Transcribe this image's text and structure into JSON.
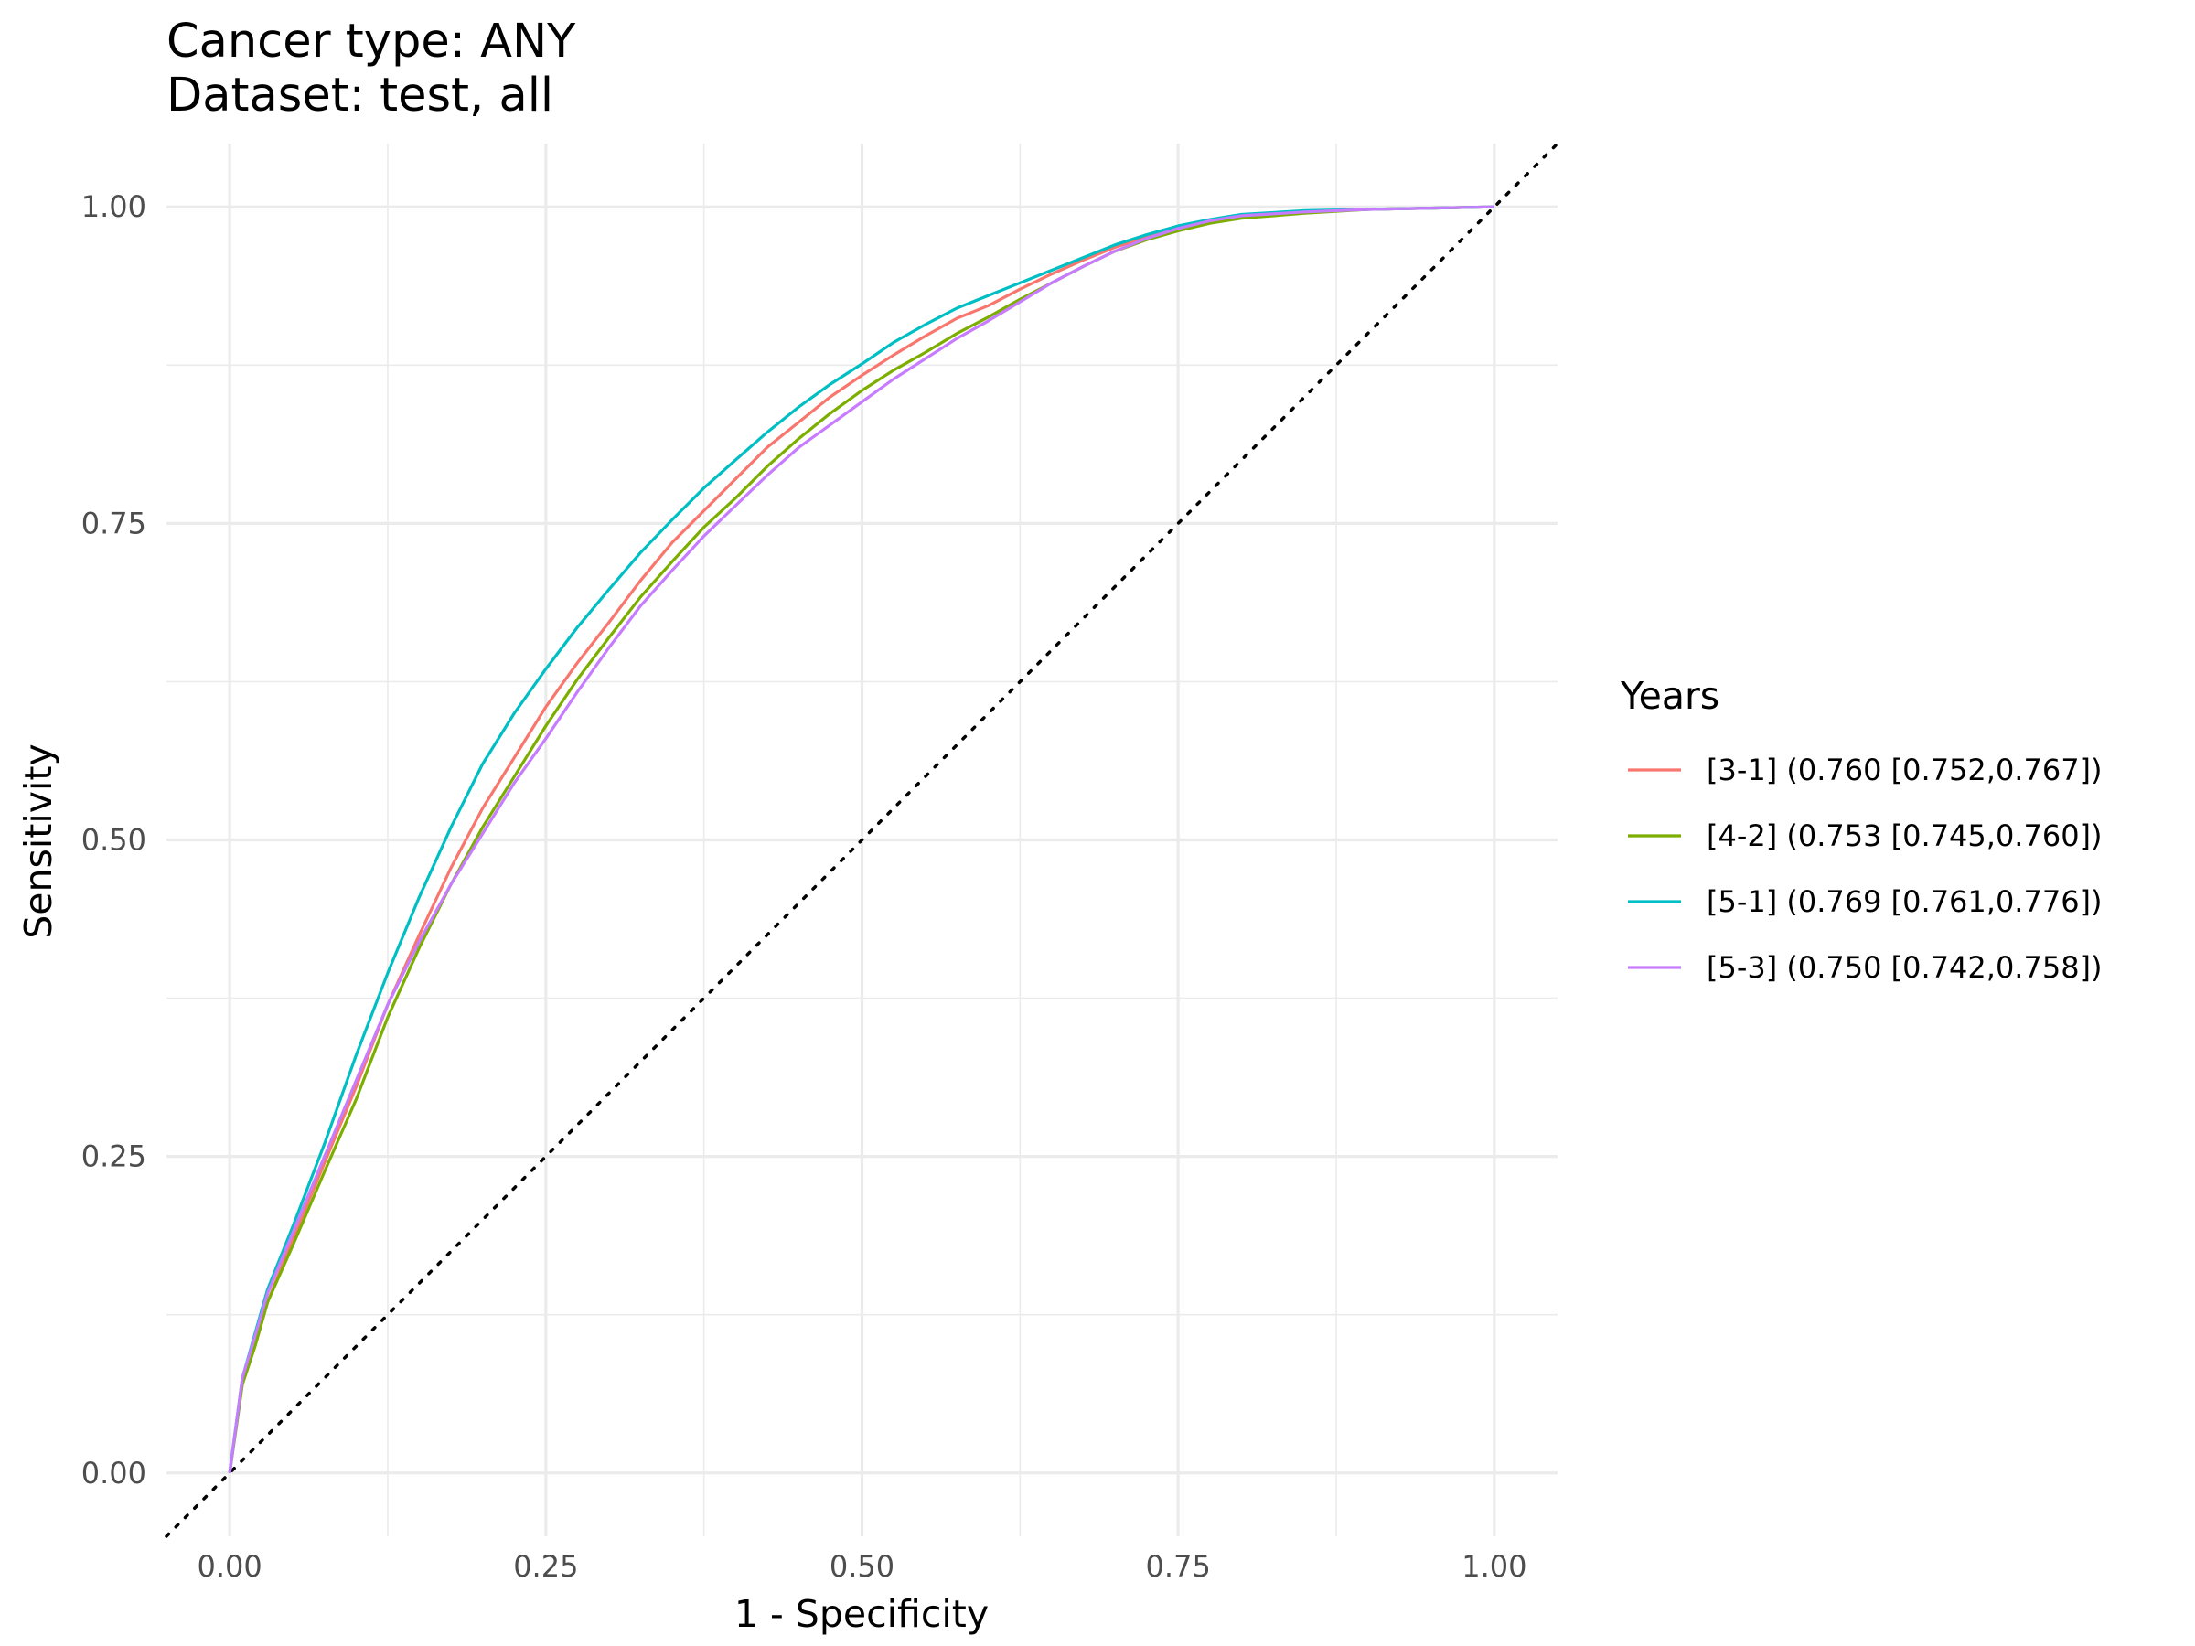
{
  "chart_data": {
    "type": "line",
    "title": "Cancer type: ANY",
    "subtitle": "Dataset: test, all",
    "xlabel": "1 - Specificity",
    "ylabel": "Sensitivity",
    "xlim": [
      -0.05,
      1.05
    ],
    "ylim": [
      -0.05,
      1.05
    ],
    "x_ticks": [
      0,
      0.25,
      0.5,
      0.75,
      1
    ],
    "x_tick_labels": [
      "0.00",
      "0.25",
      "0.50",
      "0.75",
      "1.00"
    ],
    "y_ticks": [
      0,
      0.25,
      0.5,
      0.75,
      1
    ],
    "y_tick_labels": [
      "0.00",
      "0.25",
      "0.50",
      "0.75",
      "1.00"
    ],
    "grid": true,
    "legend": {
      "title": "Years",
      "position": "right"
    },
    "reference_line": {
      "style": "dotted",
      "color": "#000000",
      "slope": 1,
      "intercept": 0
    },
    "series": [
      {
        "name": "[3-1] (0.760 [0.752,0.767])",
        "color": "#F8766D",
        "x": [
          0,
          0.01,
          0.02,
          0.03,
          0.05,
          0.075,
          0.1,
          0.125,
          0.15,
          0.175,
          0.2,
          0.225,
          0.25,
          0.275,
          0.3,
          0.325,
          0.35,
          0.375,
          0.4,
          0.425,
          0.45,
          0.475,
          0.5,
          0.525,
          0.55,
          0.575,
          0.6,
          0.625,
          0.65,
          0.675,
          0.7,
          0.725,
          0.75,
          0.775,
          0.8,
          0.85,
          0.9,
          0.95,
          1.0
        ],
        "y": [
          0,
          0.07,
          0.1,
          0.135,
          0.185,
          0.245,
          0.305,
          0.37,
          0.425,
          0.478,
          0.525,
          0.565,
          0.605,
          0.64,
          0.672,
          0.705,
          0.735,
          0.76,
          0.785,
          0.81,
          0.83,
          0.85,
          0.867,
          0.883,
          0.898,
          0.912,
          0.922,
          0.935,
          0.947,
          0.958,
          0.968,
          0.976,
          0.983,
          0.989,
          0.993,
          0.996,
          0.998,
          0.999,
          1.0
        ]
      },
      {
        "name": "[4-2] (0.753 [0.745,0.760])",
        "color": "#7CAE00",
        "x": [
          0,
          0.01,
          0.02,
          0.03,
          0.05,
          0.075,
          0.1,
          0.125,
          0.15,
          0.175,
          0.2,
          0.225,
          0.25,
          0.275,
          0.3,
          0.325,
          0.35,
          0.375,
          0.4,
          0.425,
          0.45,
          0.475,
          0.5,
          0.525,
          0.55,
          0.575,
          0.6,
          0.625,
          0.65,
          0.675,
          0.7,
          0.725,
          0.75,
          0.775,
          0.8,
          0.85,
          0.9,
          0.95,
          1.0
        ],
        "y": [
          0,
          0.07,
          0.1,
          0.135,
          0.18,
          0.238,
          0.295,
          0.36,
          0.415,
          0.465,
          0.51,
          0.55,
          0.59,
          0.627,
          0.66,
          0.692,
          0.72,
          0.747,
          0.77,
          0.795,
          0.817,
          0.837,
          0.855,
          0.871,
          0.885,
          0.9,
          0.913,
          0.927,
          0.94,
          0.953,
          0.965,
          0.974,
          0.981,
          0.987,
          0.991,
          0.995,
          0.998,
          0.999,
          1.0
        ]
      },
      {
        "name": "[5-1] (0.769 [0.761,0.776])",
        "color": "#00BFC4",
        "x": [
          0,
          0.01,
          0.02,
          0.03,
          0.05,
          0.075,
          0.1,
          0.125,
          0.15,
          0.175,
          0.2,
          0.225,
          0.25,
          0.275,
          0.3,
          0.325,
          0.35,
          0.375,
          0.4,
          0.425,
          0.45,
          0.475,
          0.5,
          0.525,
          0.55,
          0.575,
          0.6,
          0.625,
          0.65,
          0.675,
          0.7,
          0.725,
          0.75,
          0.775,
          0.8,
          0.85,
          0.9,
          0.95,
          1.0
        ],
        "y": [
          0,
          0.075,
          0.11,
          0.145,
          0.195,
          0.26,
          0.33,
          0.395,
          0.455,
          0.51,
          0.56,
          0.6,
          0.635,
          0.668,
          0.698,
          0.727,
          0.753,
          0.778,
          0.8,
          0.822,
          0.842,
          0.86,
          0.876,
          0.893,
          0.907,
          0.92,
          0.93,
          0.94,
          0.95,
          0.96,
          0.97,
          0.978,
          0.985,
          0.99,
          0.994,
          0.997,
          0.998,
          0.999,
          1.0
        ]
      },
      {
        "name": "[5-3] (0.750 [0.742,0.758])",
        "color": "#C77CFF",
        "x": [
          0,
          0.01,
          0.02,
          0.03,
          0.05,
          0.075,
          0.1,
          0.125,
          0.15,
          0.175,
          0.2,
          0.225,
          0.25,
          0.275,
          0.3,
          0.325,
          0.35,
          0.375,
          0.4,
          0.425,
          0.45,
          0.475,
          0.5,
          0.525,
          0.55,
          0.575,
          0.6,
          0.625,
          0.65,
          0.675,
          0.7,
          0.725,
          0.75,
          0.775,
          0.8,
          0.85,
          0.9,
          0.95,
          1.0
        ],
        "y": [
          0,
          0.075,
          0.108,
          0.142,
          0.19,
          0.25,
          0.31,
          0.37,
          0.42,
          0.465,
          0.505,
          0.545,
          0.58,
          0.617,
          0.652,
          0.685,
          0.713,
          0.74,
          0.764,
          0.788,
          0.81,
          0.828,
          0.846,
          0.864,
          0.88,
          0.896,
          0.91,
          0.925,
          0.94,
          0.953,
          0.965,
          0.975,
          0.983,
          0.989,
          0.993,
          0.996,
          0.998,
          0.999,
          1.0
        ]
      }
    ]
  }
}
